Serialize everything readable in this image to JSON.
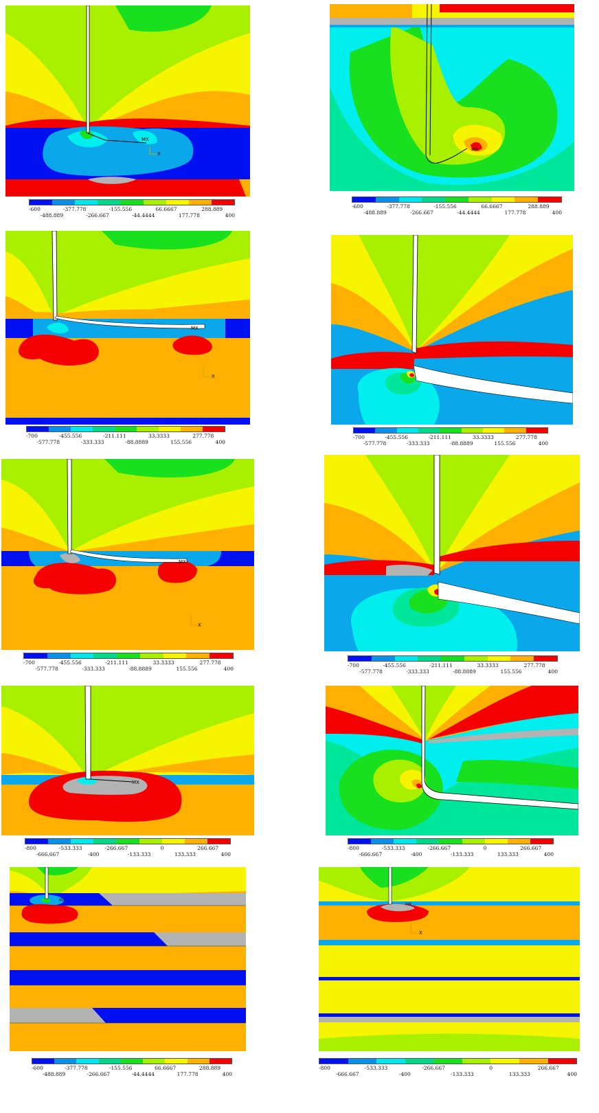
{
  "markers": {
    "mx": "MX",
    "axis_x": "X"
  },
  "palette": [
    "#0010f0",
    "#0a90e8",
    "#00e6ea",
    "#00d98a",
    "#19e01e",
    "#a8f000",
    "#f6f400",
    "#ffb000",
    "#f50000"
  ],
  "stress_colors": {
    "blue": "#0010f0",
    "light_blue": "#0aa8ea",
    "cyan": "#00eeee",
    "teal": "#00e69a",
    "green": "#19e01e",
    "yellow_green": "#a8f000",
    "yellow": "#f6f400",
    "orange": "#ffb000",
    "red": "#f50000",
    "gray": "#b3b3b3"
  },
  "legends": {
    "scale_600": [
      "-600",
      "-488.889",
      "-377.778",
      "-266.667",
      "-155.556",
      "-44.4444",
      "66.6667",
      "177.778",
      "288.889",
      "400"
    ],
    "scale_700": [
      "-700",
      "-577.778",
      "-455.556",
      "-333.333",
      "-211.111",
      "-88.8889",
      "33.3333",
      "155.556",
      "277.778",
      "400"
    ],
    "scale_800": [
      "-800",
      "-666.667",
      "-533.333",
      "-400",
      "-266.667",
      "-133.333",
      "0",
      "133.333",
      "266.667",
      "400"
    ]
  }
}
